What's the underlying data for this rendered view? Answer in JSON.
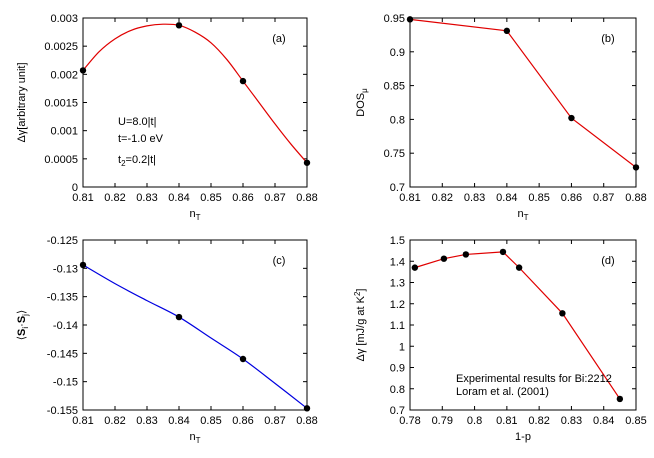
{
  "chart_data": [
    {
      "type": "scatter",
      "panel": "(a)",
      "xlabel_main": "n",
      "xlabel_sub": "T",
      "ylabel": "Δγ[arbitrary unit]",
      "xlim": [
        0.81,
        0.88
      ],
      "ylim": [
        0,
        0.003
      ],
      "xticks": [
        "0.81",
        "0.82",
        "0.83",
        "0.84",
        "0.85",
        "0.86",
        "0.87",
        "0.88"
      ],
      "yticks": [
        "0",
        "0.0005",
        "0.001",
        "0.0015",
        "0.002",
        "0.0025",
        "0.003"
      ],
      "points": [
        {
          "x": 0.81,
          "y": 0.00207
        },
        {
          "x": 0.84,
          "y": 0.00287
        },
        {
          "x": 0.86,
          "y": 0.00188
        },
        {
          "x": 0.88,
          "y": 0.00043
        }
      ],
      "curve_color": "#e00000",
      "curve": "smooth-fit",
      "curve_samples": [
        [
          0.81,
          0.00207
        ],
        [
          0.815,
          0.0024
        ],
        [
          0.82,
          0.00263
        ],
        [
          0.825,
          0.00278
        ],
        [
          0.83,
          0.00286
        ],
        [
          0.835,
          0.00289
        ],
        [
          0.84,
          0.00287
        ],
        [
          0.845,
          0.00275
        ],
        [
          0.85,
          0.00256
        ],
        [
          0.855,
          0.00226
        ],
        [
          0.86,
          0.00188
        ],
        [
          0.865,
          0.0015
        ],
        [
          0.87,
          0.00112
        ],
        [
          0.875,
          0.00076
        ],
        [
          0.88,
          0.00043
        ]
      ],
      "notes": [
        {
          "main": "U=8.0|t|",
          "sub": ""
        },
        {
          "main": "t=-1.0 eV",
          "sub": ""
        },
        {
          "main": "t",
          "sub": "2",
          "rest": "=0.2|t|"
        }
      ]
    },
    {
      "type": "line",
      "panel": "(b)",
      "xlabel_main": "n",
      "xlabel_sub": "T",
      "ylabel_main": "DOS",
      "ylabel_sub": "μ",
      "xlim": [
        0.81,
        0.88
      ],
      "ylim": [
        0.7,
        0.95
      ],
      "xticks": [
        "0.81",
        "0.82",
        "0.83",
        "0.84",
        "0.85",
        "0.86",
        "0.87",
        "0.88"
      ],
      "yticks": [
        "0.7",
        "0.75",
        "0.8",
        "0.85",
        "0.9",
        "0.95"
      ],
      "points": [
        {
          "x": 0.81,
          "y": 0.948
        },
        {
          "x": 0.84,
          "y": 0.931
        },
        {
          "x": 0.86,
          "y": 0.802
        },
        {
          "x": 0.88,
          "y": 0.729
        }
      ],
      "curve_color": "#e00000"
    },
    {
      "type": "scatter",
      "panel": "(c)",
      "xlabel_main": "n",
      "xlabel_sub": "T",
      "ylabel": "⟨S_i·S_j⟩",
      "xlim": [
        0.81,
        0.88
      ],
      "ylim": [
        -0.155,
        -0.125
      ],
      "xticks": [
        "0.81",
        "0.82",
        "0.83",
        "0.84",
        "0.85",
        "0.86",
        "0.87",
        "0.88"
      ],
      "yticks": [
        "-0.125",
        "-0.13",
        "-0.135",
        "-0.14",
        "-0.145",
        "-0.15",
        "-0.155"
      ],
      "points": [
        {
          "x": 0.81,
          "y": -0.1294
        },
        {
          "x": 0.84,
          "y": -0.1386
        },
        {
          "x": 0.86,
          "y": -0.146
        },
        {
          "x": 0.88,
          "y": -0.1547
        }
      ],
      "curve_color": "#0000e0",
      "curve": "smooth-fit",
      "curve_samples": [
        [
          0.81,
          -0.1294
        ],
        [
          0.82,
          -0.1327
        ],
        [
          0.83,
          -0.1357
        ],
        [
          0.84,
          -0.1386
        ],
        [
          0.85,
          -0.1423
        ],
        [
          0.86,
          -0.146
        ],
        [
          0.87,
          -0.1503
        ],
        [
          0.88,
          -0.1547
        ]
      ]
    },
    {
      "type": "line",
      "panel": "(d)",
      "xlabel": "1-p",
      "ylabel_main": "Δγ [mJ/g at K",
      "ylabel_sup": "2",
      "ylabel_end": "]",
      "xlim": [
        0.78,
        0.85
      ],
      "ylim": [
        0.7,
        1.5
      ],
      "xticks": [
        "0.78",
        "0.79",
        "0.8",
        "0.81",
        "0.82",
        "0.83",
        "0.84",
        "0.85"
      ],
      "yticks": [
        "0.7",
        "0.8",
        "0.9",
        "1",
        "1.1",
        "1.2",
        "1.3",
        "1.4",
        "1.5"
      ],
      "points": [
        {
          "x": 0.7815,
          "y": 1.37
        },
        {
          "x": 0.7905,
          "y": 1.412
        },
        {
          "x": 0.7973,
          "y": 1.432
        },
        {
          "x": 0.8088,
          "y": 1.444
        },
        {
          "x": 0.8138,
          "y": 1.37
        },
        {
          "x": 0.8272,
          "y": 1.155
        },
        {
          "x": 0.845,
          "y": 0.752
        }
      ],
      "curve_color": "#e00000",
      "notes": [
        {
          "main": "Experimental results for Bi:2212"
        },
        {
          "main": "Loram et al. (2001)"
        }
      ]
    }
  ]
}
